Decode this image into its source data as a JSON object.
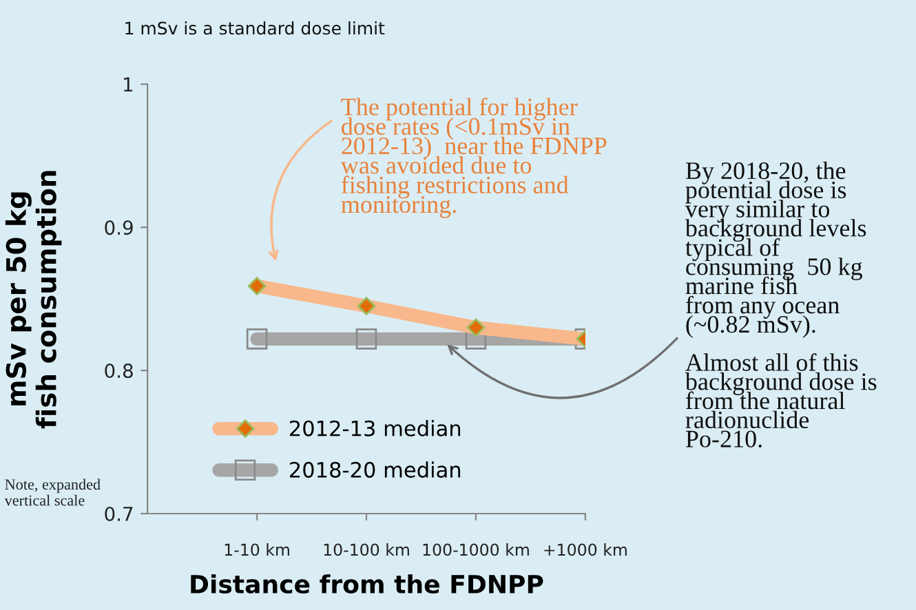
{
  "chart_data": {
    "type": "line",
    "categories": [
      "1-10 km",
      "10-100 km",
      "100-1000 km",
      "+1000 km"
    ],
    "series": [
      {
        "name": "2012-13 median",
        "color": "#f8b88b",
        "marker": "diamond",
        "values": [
          0.859,
          0.845,
          0.83,
          0.822
        ]
      },
      {
        "name": "2018-20 median",
        "color": "#a6a6a6",
        "marker": "square",
        "values": [
          0.822,
          0.822,
          0.822,
          0.822
        ]
      }
    ],
    "xlabel": "Distance from the FDNPP",
    "ylabel": "mSv per 50 kg\nfish consumption",
    "ylim": [
      0.7,
      1
    ],
    "yticks": [
      0.7,
      0.8,
      0.9,
      1
    ],
    "legend": "bottom left",
    "grid": false,
    "annotations": [
      "1 mSv is a standard dose limit",
      "The potential for higher\ndose rates (<0.1mSv in\n2012-13)  near the FDNPP\nwas avoided due to\nfishing restrictions and\nmonitoring.",
      "By 2018-20, the\npotential dose is\nvery similar to\nbackground levels\ntypical of\nconsuming  50 kg\nmarine fish\nfrom any ocean\n(~0.82 mSv).\n\nAlmost all of this\nbackground dose is\nfrom the natural\nradionuclide\nPo-210.",
      "Note, expanded\nvertical scale"
    ]
  }
}
